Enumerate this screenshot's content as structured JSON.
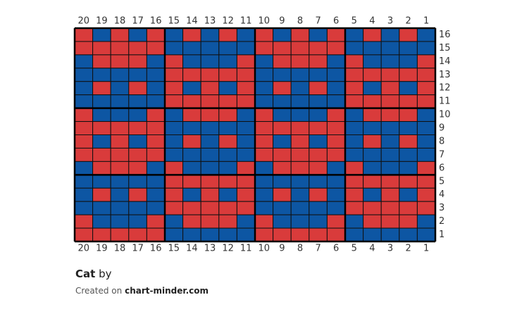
{
  "title": "Cat",
  "by": "by",
  "credit": {
    "prefix": "Created on",
    "site": "chart-minder.com"
  },
  "colors": {
    "R": "#d93b3b",
    "B": "#0d56a3"
  },
  "columns": [
    20,
    19,
    18,
    17,
    16,
    15,
    14,
    13,
    12,
    11,
    10,
    9,
    8,
    7,
    6,
    5,
    4,
    3,
    2,
    1
  ],
  "rows": [
    {
      "label": 16,
      "cells": [
        "R",
        "B",
        "R",
        "B",
        "R",
        "B",
        "R",
        "B",
        "R",
        "B",
        "R",
        "B",
        "R",
        "B",
        "R",
        "B",
        "R",
        "B",
        "R",
        "B"
      ]
    },
    {
      "label": 15,
      "cells": [
        "R",
        "R",
        "R",
        "R",
        "R",
        "B",
        "B",
        "B",
        "B",
        "B",
        "R",
        "R",
        "R",
        "R",
        "R",
        "B",
        "B",
        "B",
        "B",
        "B"
      ]
    },
    {
      "label": 14,
      "cells": [
        "B",
        "R",
        "R",
        "R",
        "B",
        "R",
        "B",
        "B",
        "B",
        "R",
        "B",
        "R",
        "R",
        "R",
        "B",
        "R",
        "B",
        "B",
        "B",
        "R"
      ]
    },
    {
      "label": 13,
      "cells": [
        "B",
        "B",
        "B",
        "B",
        "B",
        "R",
        "R",
        "R",
        "R",
        "R",
        "B",
        "B",
        "B",
        "B",
        "B",
        "R",
        "R",
        "R",
        "R",
        "R"
      ]
    },
    {
      "label": 12,
      "cells": [
        "B",
        "R",
        "B",
        "R",
        "B",
        "R",
        "B",
        "R",
        "B",
        "R",
        "B",
        "R",
        "B",
        "R",
        "B",
        "R",
        "B",
        "R",
        "B",
        "R"
      ]
    },
    {
      "label": 11,
      "cells": [
        "B",
        "B",
        "B",
        "B",
        "B",
        "R",
        "R",
        "R",
        "R",
        "R",
        "B",
        "B",
        "B",
        "B",
        "B",
        "R",
        "R",
        "R",
        "R",
        "R"
      ]
    },
    {
      "label": 10,
      "cells": [
        "R",
        "B",
        "B",
        "B",
        "R",
        "B",
        "R",
        "R",
        "R",
        "B",
        "R",
        "B",
        "B",
        "B",
        "R",
        "B",
        "R",
        "R",
        "R",
        "B"
      ]
    },
    {
      "label": 9,
      "cells": [
        "R",
        "R",
        "R",
        "R",
        "R",
        "B",
        "B",
        "B",
        "B",
        "B",
        "R",
        "R",
        "R",
        "R",
        "R",
        "B",
        "B",
        "B",
        "B",
        "B"
      ]
    },
    {
      "label": 8,
      "cells": [
        "R",
        "B",
        "R",
        "B",
        "R",
        "B",
        "R",
        "B",
        "R",
        "B",
        "R",
        "B",
        "R",
        "B",
        "R",
        "B",
        "R",
        "B",
        "R",
        "B"
      ]
    },
    {
      "label": 7,
      "cells": [
        "R",
        "R",
        "R",
        "R",
        "R",
        "B",
        "B",
        "B",
        "B",
        "B",
        "R",
        "R",
        "R",
        "R",
        "R",
        "B",
        "B",
        "B",
        "B",
        "B"
      ]
    },
    {
      "label": 6,
      "cells": [
        "B",
        "R",
        "R",
        "R",
        "B",
        "R",
        "B",
        "B",
        "B",
        "R",
        "B",
        "R",
        "R",
        "R",
        "B",
        "R",
        "B",
        "B",
        "B",
        "R"
      ]
    },
    {
      "label": 5,
      "cells": [
        "B",
        "B",
        "B",
        "B",
        "B",
        "R",
        "R",
        "R",
        "R",
        "R",
        "B",
        "B",
        "B",
        "B",
        "B",
        "R",
        "R",
        "R",
        "R",
        "R"
      ]
    },
    {
      "label": 4,
      "cells": [
        "B",
        "R",
        "B",
        "R",
        "B",
        "R",
        "B",
        "R",
        "B",
        "R",
        "B",
        "R",
        "B",
        "R",
        "B",
        "R",
        "B",
        "R",
        "B",
        "R"
      ]
    },
    {
      "label": 3,
      "cells": [
        "B",
        "B",
        "B",
        "B",
        "B",
        "R",
        "R",
        "R",
        "R",
        "R",
        "B",
        "B",
        "B",
        "B",
        "B",
        "R",
        "R",
        "R",
        "R",
        "R"
      ]
    },
    {
      "label": 2,
      "cells": [
        "R",
        "B",
        "B",
        "B",
        "R",
        "B",
        "R",
        "R",
        "R",
        "B",
        "R",
        "B",
        "B",
        "B",
        "R",
        "B",
        "R",
        "R",
        "R",
        "B"
      ]
    },
    {
      "label": 1,
      "cells": [
        "R",
        "R",
        "R",
        "R",
        "R",
        "B",
        "B",
        "B",
        "B",
        "B",
        "R",
        "R",
        "R",
        "R",
        "R",
        "B",
        "B",
        "B",
        "B",
        "B"
      ]
    }
  ]
}
